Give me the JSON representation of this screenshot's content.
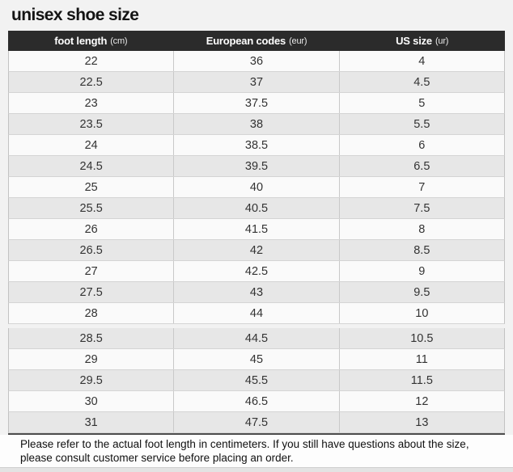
{
  "title": "unisex shoe size",
  "chart_data": {
    "type": "table",
    "title": "unisex shoe size",
    "columns": [
      {
        "label": "foot length",
        "unit": "(cm)"
      },
      {
        "label": "European codes",
        "unit": "(eur)"
      },
      {
        "label": "US size",
        "unit": "(ur)"
      }
    ],
    "sections": [
      {
        "rows": [
          [
            "22",
            "36",
            "4"
          ],
          [
            "22.5",
            "37",
            "4.5"
          ],
          [
            "23",
            "37.5",
            "5"
          ],
          [
            "23.5",
            "38",
            "5.5"
          ],
          [
            "24",
            "38.5",
            "6"
          ],
          [
            "24.5",
            "39.5",
            "6.5"
          ],
          [
            "25",
            "40",
            "7"
          ],
          [
            "25.5",
            "40.5",
            "7.5"
          ],
          [
            "26",
            "41.5",
            "8"
          ],
          [
            "26.5",
            "42",
            "8.5"
          ],
          [
            "27",
            "42.5",
            "9"
          ],
          [
            "27.5",
            "43",
            "9.5"
          ],
          [
            "28",
            "44",
            "10"
          ]
        ]
      },
      {
        "rows": [
          [
            "28.5",
            "44.5",
            "10.5"
          ],
          [
            "29",
            "45",
            "11"
          ],
          [
            "29.5",
            "45.5",
            "11.5"
          ],
          [
            "30",
            "46.5",
            "12"
          ],
          [
            "31",
            "47.5",
            "13"
          ]
        ]
      }
    ]
  },
  "footer": {
    "note": "Please refer to the actual foot length in centimeters. If you still have questions about the size, please consult customer service before placing an order."
  },
  "colors": {
    "page_bg": "#f2f2f2",
    "header_bg": "#2b2b2b",
    "header_text": "#ffffff",
    "row_light": "#fafafa",
    "row_dark": "#e7e7e7",
    "body_text": "#333333"
  }
}
